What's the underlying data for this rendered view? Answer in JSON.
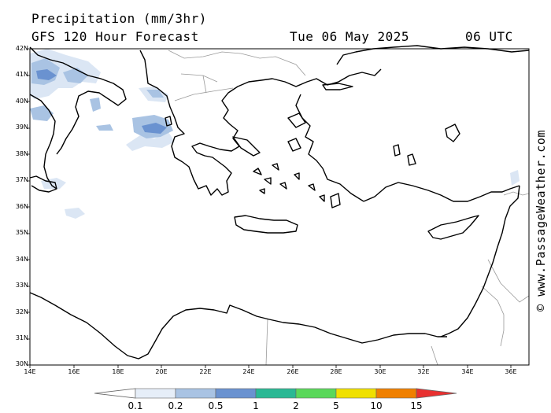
{
  "header": {
    "title": "Precipitation (mm/3hr)",
    "subtitle": "GFS 120 Hour Forecast",
    "date": "Tue 06 May 2025",
    "time": "06 UTC"
  },
  "credit": "© www.PassageWeather.com",
  "map": {
    "lat_labels": [
      "42N",
      "41N",
      "40N",
      "39N",
      "38N",
      "37N",
      "36N",
      "35N",
      "34N",
      "33N",
      "32N",
      "31N",
      "30N"
    ],
    "lon_labels": [
      "14E",
      "16E",
      "18E",
      "20E",
      "22E",
      "24E",
      "26E",
      "28E",
      "30E",
      "32E",
      "34E",
      "36E"
    ],
    "lat_range": [
      30,
      42
    ],
    "lon_range": [
      14,
      37.2
    ],
    "colors": {
      "land_outline": "#000000",
      "border": "#9a9a9a",
      "frame": "#000000"
    }
  },
  "colorbar": {
    "labels": [
      "0.1",
      "0.2",
      "0.5",
      "1",
      "2",
      "5",
      "10",
      "15"
    ],
    "colors": [
      "#ffffff",
      "#e6eef8",
      "#a9c3e3",
      "#6a92d0",
      "#2ab894",
      "#5ad85a",
      "#f0e000",
      "#f08000",
      "#e83030"
    ]
  },
  "precip_colors": {
    "light": "#dbe6f4",
    "medium": "#a9c3e3",
    "heavy": "#6a92d0"
  }
}
